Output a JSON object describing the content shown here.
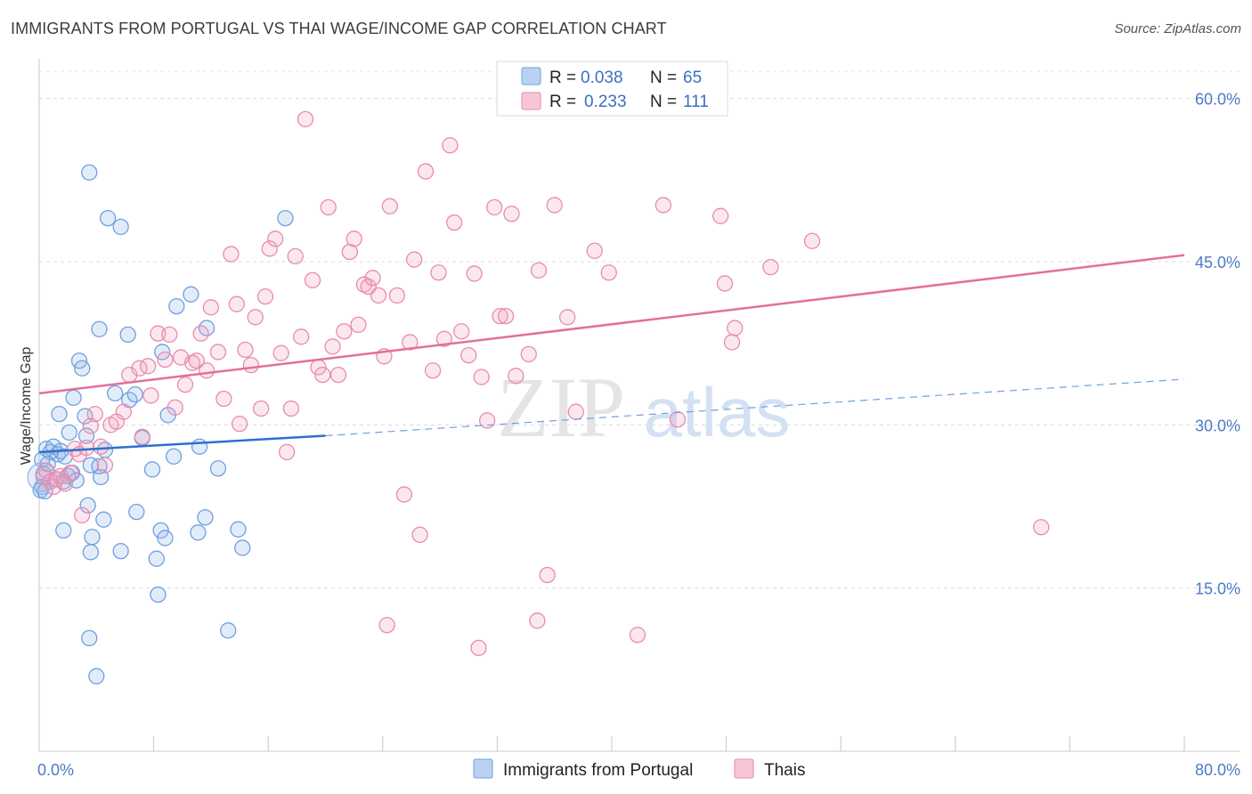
{
  "header": {
    "title": "IMMIGRANTS FROM PORTUGAL VS THAI WAGE/INCOME GAP CORRELATION CHART",
    "source": "Source: ZipAtlas.com"
  },
  "watermark": {
    "zip": "ZIP",
    "atlas": "atlas"
  },
  "legend_top": [
    {
      "r_label": "R = ",
      "r_value": "0.038",
      "n_label": "N = ",
      "n_value": "65",
      "color": "#6fa0e0",
      "fill": "#b9d2f2"
    },
    {
      "r_label": "R = ",
      "r_value": "0.233",
      "n_label": "N = ",
      "n_value": "111",
      "color": "#e889a8",
      "fill": "#f7c6d6"
    }
  ],
  "legend_bottom": [
    {
      "label": "Immigrants from Portugal",
      "color": "#6fa0e0",
      "fill": "#b9d2f2"
    },
    {
      "label": "Thais",
      "color": "#e889a8",
      "fill": "#f7c6d6"
    }
  ],
  "chart_data": {
    "type": "scatter",
    "title": "IMMIGRANTS FROM PORTUGAL VS THAI WAGE/INCOME GAP CORRELATION CHART",
    "xlabel": "",
    "ylabel": "Wage/Income Gap",
    "xlim": [
      0,
      80
    ],
    "ylim": [
      0,
      63
    ],
    "x_tick_labels": [
      "0.0%",
      "80.0%"
    ],
    "y_ticks": [
      15,
      30,
      45,
      60
    ],
    "y_tick_labels": [
      "15.0%",
      "30.0%",
      "45.0%",
      "60.0%"
    ],
    "grid": true,
    "legend_placement": "top-center",
    "series": [
      {
        "name": "Immigrants from Portugal",
        "color": "#4a7fd4",
        "r": 0.038,
        "n": 65,
        "trend": {
          "x": [
            0,
            20
          ],
          "y": [
            27.5,
            29.0
          ],
          "dashed_to": [
            80,
            34.2
          ]
        },
        "points": [
          [
            0.3,
            25.5
          ],
          [
            0.2,
            24.3
          ],
          [
            0.5,
            27.8
          ],
          [
            0.8,
            27.5
          ],
          [
            1.0,
            28.0
          ],
          [
            1.3,
            27.3
          ],
          [
            1.5,
            27.6
          ],
          [
            1.8,
            27.1
          ],
          [
            0.6,
            26.4
          ],
          [
            1.2,
            25.0
          ],
          [
            1.7,
            24.8
          ],
          [
            2.0,
            25.3
          ],
          [
            2.3,
            25.6
          ],
          [
            2.6,
            24.9
          ],
          [
            1.4,
            31.0
          ],
          [
            2.1,
            29.3
          ],
          [
            2.4,
            32.5
          ],
          [
            2.8,
            35.9
          ],
          [
            3.0,
            35.2
          ],
          [
            3.2,
            30.8
          ],
          [
            3.4,
            22.6
          ],
          [
            3.6,
            26.3
          ],
          [
            3.3,
            29.0
          ],
          [
            1.7,
            20.3
          ],
          [
            3.7,
            19.7
          ],
          [
            3.6,
            18.3
          ],
          [
            4.3,
            25.2
          ],
          [
            4.6,
            27.7
          ],
          [
            4.5,
            21.3
          ],
          [
            4.2,
            38.8
          ],
          [
            4.2,
            26.2
          ],
          [
            3.5,
            53.2
          ],
          [
            4.8,
            49.0
          ],
          [
            5.7,
            48.2
          ],
          [
            5.3,
            32.9
          ],
          [
            6.2,
            38.3
          ],
          [
            5.7,
            18.4
          ],
          [
            6.8,
            22.0
          ],
          [
            6.3,
            32.3
          ],
          [
            6.7,
            32.8
          ],
          [
            7.2,
            28.8
          ],
          [
            7.9,
            25.9
          ],
          [
            8.2,
            17.7
          ],
          [
            8.3,
            14.4
          ],
          [
            8.5,
            20.3
          ],
          [
            8.8,
            19.6
          ],
          [
            8.6,
            36.7
          ],
          [
            9.0,
            30.9
          ],
          [
            9.4,
            27.1
          ],
          [
            9.6,
            40.9
          ],
          [
            10.6,
            42.0
          ],
          [
            11.1,
            20.1
          ],
          [
            11.2,
            28.0
          ],
          [
            11.6,
            21.5
          ],
          [
            11.7,
            38.9
          ],
          [
            12.5,
            26.0
          ],
          [
            13.2,
            11.1
          ],
          [
            13.9,
            20.4
          ],
          [
            14.2,
            18.7
          ],
          [
            17.2,
            49.0
          ],
          [
            3.5,
            10.4
          ],
          [
            4.0,
            6.9
          ],
          [
            0.1,
            24.0
          ],
          [
            0.2,
            26.8
          ],
          [
            0.4,
            23.9
          ]
        ]
      },
      {
        "name": "Thais",
        "color": "#e27a9d",
        "r": 0.233,
        "n": 111,
        "trend": {
          "x": [
            0,
            80
          ],
          "y": [
            32.9,
            45.6
          ]
        },
        "points": [
          [
            0.3,
            25.2
          ],
          [
            0.5,
            25.8
          ],
          [
            0.8,
            24.8
          ],
          [
            1.0,
            24.3
          ],
          [
            1.2,
            25.0
          ],
          [
            1.5,
            25.3
          ],
          [
            1.8,
            24.6
          ],
          [
            2.2,
            25.6
          ],
          [
            2.5,
            27.8
          ],
          [
            2.8,
            27.3
          ],
          [
            3.0,
            21.7
          ],
          [
            3.3,
            27.9
          ],
          [
            3.6,
            29.9
          ],
          [
            3.9,
            31.0
          ],
          [
            4.3,
            28.0
          ],
          [
            4.6,
            26.3
          ],
          [
            5.0,
            30.0
          ],
          [
            5.4,
            30.3
          ],
          [
            5.9,
            31.2
          ],
          [
            6.3,
            34.6
          ],
          [
            7.0,
            35.2
          ],
          [
            7.2,
            28.9
          ],
          [
            7.8,
            32.7
          ],
          [
            7.6,
            35.4
          ],
          [
            8.3,
            38.4
          ],
          [
            8.8,
            36.0
          ],
          [
            9.1,
            38.3
          ],
          [
            9.5,
            31.6
          ],
          [
            9.9,
            36.2
          ],
          [
            10.2,
            33.7
          ],
          [
            10.7,
            35.7
          ],
          [
            11.0,
            35.9
          ],
          [
            11.3,
            38.4
          ],
          [
            11.7,
            35.0
          ],
          [
            12.0,
            40.8
          ],
          [
            12.5,
            36.7
          ],
          [
            12.9,
            32.4
          ],
          [
            13.4,
            45.7
          ],
          [
            13.8,
            41.1
          ],
          [
            14.0,
            30.1
          ],
          [
            14.4,
            36.9
          ],
          [
            14.8,
            35.5
          ],
          [
            15.1,
            39.9
          ],
          [
            15.5,
            31.5
          ],
          [
            15.8,
            41.8
          ],
          [
            16.1,
            46.2
          ],
          [
            16.5,
            47.1
          ],
          [
            16.9,
            36.6
          ],
          [
            17.3,
            27.5
          ],
          [
            17.6,
            31.5
          ],
          [
            17.9,
            45.5
          ],
          [
            18.3,
            38.1
          ],
          [
            18.6,
            58.1
          ],
          [
            19.1,
            43.3
          ],
          [
            19.5,
            35.3
          ],
          [
            19.8,
            34.6
          ],
          [
            20.2,
            50.0
          ],
          [
            20.5,
            37.2
          ],
          [
            20.9,
            34.6
          ],
          [
            21.3,
            38.6
          ],
          [
            21.7,
            45.9
          ],
          [
            22.0,
            47.1
          ],
          [
            22.3,
            39.2
          ],
          [
            22.7,
            42.9
          ],
          [
            23.0,
            42.7
          ],
          [
            23.3,
            43.5
          ],
          [
            23.7,
            41.9
          ],
          [
            24.1,
            36.3
          ],
          [
            24.5,
            50.1
          ],
          [
            25.0,
            41.9
          ],
          [
            25.5,
            23.6
          ],
          [
            25.9,
            37.6
          ],
          [
            26.2,
            45.2
          ],
          [
            26.6,
            19.9
          ],
          [
            27.0,
            53.3
          ],
          [
            27.5,
            35.0
          ],
          [
            27.9,
            44.0
          ],
          [
            28.3,
            37.9
          ],
          [
            28.7,
            55.7
          ],
          [
            29.0,
            48.6
          ],
          [
            29.5,
            38.6
          ],
          [
            30.0,
            36.4
          ],
          [
            30.4,
            43.9
          ],
          [
            30.9,
            34.4
          ],
          [
            31.3,
            30.4
          ],
          [
            31.8,
            50.0
          ],
          [
            32.2,
            40.0
          ],
          [
            32.6,
            40.0
          ],
          [
            33.0,
            49.4
          ],
          [
            33.3,
            34.5
          ],
          [
            34.2,
            36.5
          ],
          [
            34.9,
            44.2
          ],
          [
            35.5,
            16.2
          ],
          [
            36.0,
            50.2
          ],
          [
            36.9,
            39.9
          ],
          [
            37.5,
            31.2
          ],
          [
            38.8,
            46.0
          ],
          [
            39.8,
            44.0
          ],
          [
            41.8,
            10.7
          ],
          [
            43.6,
            50.2
          ],
          [
            44.6,
            30.5
          ],
          [
            47.6,
            49.2
          ],
          [
            47.9,
            43.0
          ],
          [
            48.4,
            37.6
          ],
          [
            48.6,
            38.9
          ],
          [
            51.1,
            44.5
          ],
          [
            54.0,
            46.9
          ],
          [
            70.0,
            20.6
          ],
          [
            24.3,
            11.6
          ],
          [
            30.7,
            9.5
          ],
          [
            34.8,
            12.0
          ]
        ]
      }
    ]
  }
}
